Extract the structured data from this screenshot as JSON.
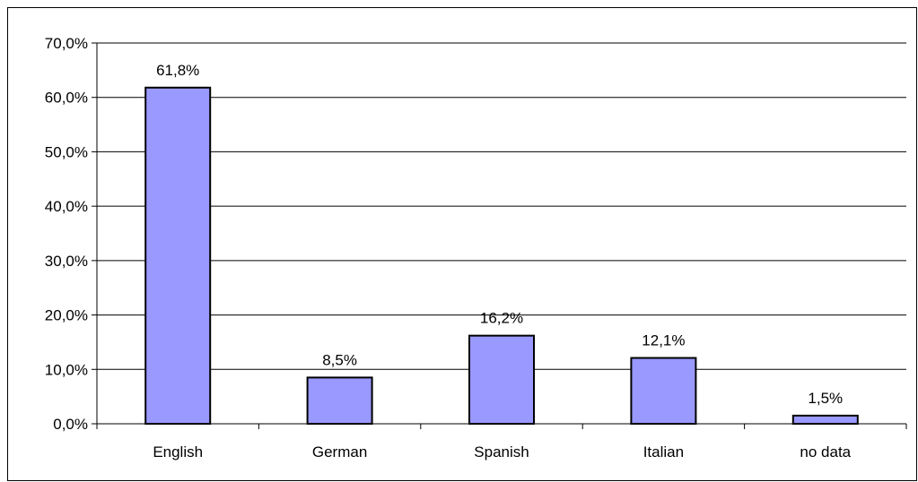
{
  "chart_data": {
    "type": "bar",
    "categories": [
      "English",
      "German",
      "Spanish",
      "Italian",
      "no data"
    ],
    "values": [
      61.8,
      8.5,
      16.2,
      12.1,
      1.5
    ],
    "data_labels": [
      "61,8%",
      "8,5%",
      "16,2%",
      "12,1%",
      "1,5%"
    ],
    "ylim": [
      0,
      70
    ],
    "yticks": [
      0,
      10,
      20,
      30,
      40,
      50,
      60,
      70
    ],
    "ytick_labels": [
      "0,0%",
      "10,0%",
      "20,0%",
      "30,0%",
      "40,0%",
      "50,0%",
      "60,0%",
      "70,0%"
    ],
    "grid": true,
    "legend": "none",
    "colors": {
      "bar_fill": "#9999ff",
      "bar_stroke": "#000000",
      "grid": "#000000"
    }
  }
}
